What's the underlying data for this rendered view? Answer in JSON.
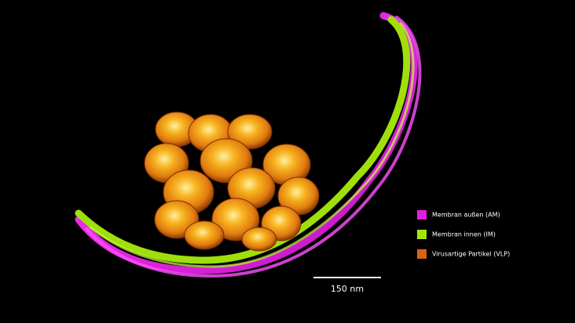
{
  "legend": {
    "items": [
      {
        "label": "Membran außen  (AM)",
        "color": "#e41ee0"
      },
      {
        "label": "Membran innen (IM)",
        "color": "#a4e60a"
      },
      {
        "label": "Virusartige Partikel (VLP)",
        "color": "#d9640f"
      }
    ]
  },
  "scale_bar": {
    "label": "150 nm"
  }
}
